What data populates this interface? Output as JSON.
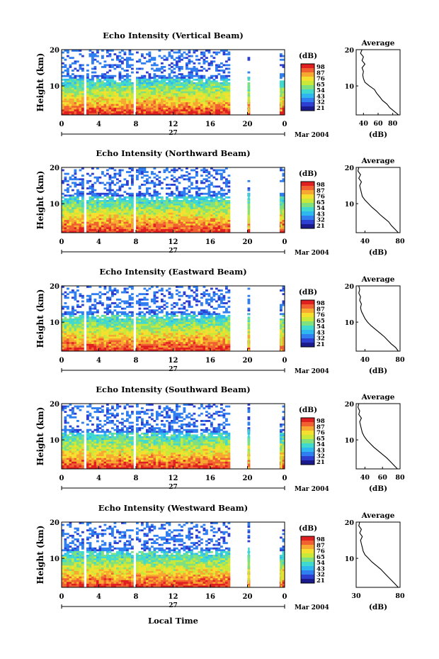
{
  "panel_titles": [
    "Echo Intensity (Vertical Beam)",
    "Echo Intensity (Northward Beam)",
    "Echo Intensity (Eastward Beam)",
    "Echo Intensity (Southward Beam)",
    "Echo Intensity (Westward Beam)"
  ],
  "ylabel": "Height (km)",
  "yticks": [
    "20",
    "10"
  ],
  "xticks": [
    "0",
    "4",
    "8",
    "12",
    "16",
    "20",
    "0"
  ],
  "date_day": "27",
  "date_month": "Mar 2004",
  "xlabel": "Local Time",
  "colorbar": {
    "unit": "(dB)",
    "labels": [
      "98",
      "87",
      "76",
      "65",
      "54",
      "43",
      "32",
      "21"
    ],
    "colors": [
      "#1a1a8c",
      "#2c3fd0",
      "#2f7ff0",
      "#2fb7f0",
      "#3fd9d0",
      "#7fe07f",
      "#c8e83a",
      "#f5e030",
      "#f7a830",
      "#f06030",
      "#e02020"
    ]
  },
  "average_title": "Average",
  "average_unit": "(dB)",
  "average_yticks": [
    "20",
    "10"
  ],
  "average_xticks": [
    [
      "40",
      "60",
      "80"
    ],
    [
      "40",
      "80"
    ],
    [
      "40",
      "80"
    ],
    [
      "40",
      "60",
      "80"
    ],
    [
      "30",
      "80"
    ]
  ],
  "chart_data": [
    {
      "type": "heatmap",
      "title": "Echo Intensity (Vertical Beam)",
      "xlabel": "",
      "ylabel": "Height (km)",
      "xlim": [
        0,
        24
      ],
      "ylim": [
        2,
        20
      ],
      "colorbar_range": [
        21,
        98
      ],
      "colorbar_unit": "(dB)",
      "gaps_hours": [
        [
          2.3,
          2.6
        ],
        [
          7.7,
          7.9
        ],
        [
          18.1,
          19.9
        ],
        [
          20.2,
          23.5
        ]
      ],
      "average_profile": {
        "xlim": [
          30,
          90
        ],
        "height_km": [
          2,
          3,
          4,
          5,
          6,
          7,
          8,
          9,
          10,
          11,
          12,
          13,
          14,
          15,
          16,
          17,
          18,
          19,
          20
        ],
        "db": [
          88,
          82,
          76,
          72,
          66,
          62,
          58,
          55,
          48,
          42,
          40,
          39,
          40,
          38,
          42,
          38,
          40,
          36,
          38
        ]
      }
    },
    {
      "type": "heatmap",
      "title": "Echo Intensity (Northward Beam)",
      "xlabel": "",
      "ylabel": "Height (km)",
      "xlim": [
        0,
        24
      ],
      "ylim": [
        2,
        20
      ],
      "colorbar_range": [
        21,
        98
      ],
      "colorbar_unit": "(dB)",
      "average_profile": {
        "xlim": [
          30,
          80
        ],
        "height_km": [
          2,
          3,
          4,
          5,
          6,
          7,
          8,
          9,
          10,
          11,
          12,
          13,
          14,
          15,
          16,
          17,
          18,
          19,
          20
        ],
        "db": [
          78,
          74,
          70,
          67,
          62,
          57,
          53,
          48,
          44,
          40,
          37,
          36,
          35,
          34,
          36,
          33,
          35,
          32,
          33
        ]
      }
    },
    {
      "type": "heatmap",
      "title": "Echo Intensity (Eastward Beam)",
      "xlabel": "",
      "ylabel": "Height (km)",
      "xlim": [
        0,
        24
      ],
      "ylim": [
        2,
        20
      ],
      "colorbar_range": [
        21,
        98
      ],
      "colorbar_unit": "(dB)",
      "average_profile": {
        "xlim": [
          30,
          80
        ],
        "height_km": [
          2,
          3,
          4,
          5,
          6,
          7,
          8,
          9,
          10,
          11,
          12,
          13,
          14,
          15,
          16,
          17,
          18,
          19,
          20
        ],
        "db": [
          78,
          75,
          70,
          66,
          62,
          57,
          52,
          47,
          43,
          40,
          38,
          36,
          35,
          36,
          34,
          35,
          33,
          34,
          33
        ]
      }
    },
    {
      "type": "heatmap",
      "title": "Echo Intensity (Southward Beam)",
      "xlabel": "",
      "ylabel": "Height (km)",
      "xlim": [
        0,
        24
      ],
      "ylim": [
        2,
        20
      ],
      "colorbar_range": [
        21,
        98
      ],
      "colorbar_unit": "(dB)",
      "average_profile": {
        "xlim": [
          30,
          80
        ],
        "height_km": [
          2,
          3,
          4,
          5,
          6,
          7,
          8,
          9,
          10,
          11,
          12,
          13,
          14,
          15,
          16,
          17,
          18,
          19,
          20
        ],
        "db": [
          77,
          73,
          69,
          65,
          60,
          55,
          50,
          46,
          42,
          39,
          37,
          36,
          35,
          34,
          36,
          33,
          34,
          32,
          33
        ]
      }
    },
    {
      "type": "heatmap",
      "title": "Echo Intensity (Westward Beam)",
      "xlabel": "Local Time",
      "ylabel": "Height (km)",
      "xlim": [
        0,
        24
      ],
      "ylim": [
        2,
        20
      ],
      "colorbar_range": [
        21,
        98
      ],
      "colorbar_unit": "(dB)",
      "average_profile": {
        "xlim": [
          30,
          80
        ],
        "height_km": [
          2,
          3,
          4,
          5,
          6,
          7,
          8,
          9,
          10,
          11,
          12,
          13,
          14,
          15,
          16,
          17,
          18,
          19,
          20
        ],
        "db": [
          78,
          74,
          70,
          66,
          62,
          58,
          53,
          48,
          44,
          40,
          38,
          37,
          36,
          35,
          37,
          34,
          36,
          33,
          34
        ]
      }
    }
  ]
}
